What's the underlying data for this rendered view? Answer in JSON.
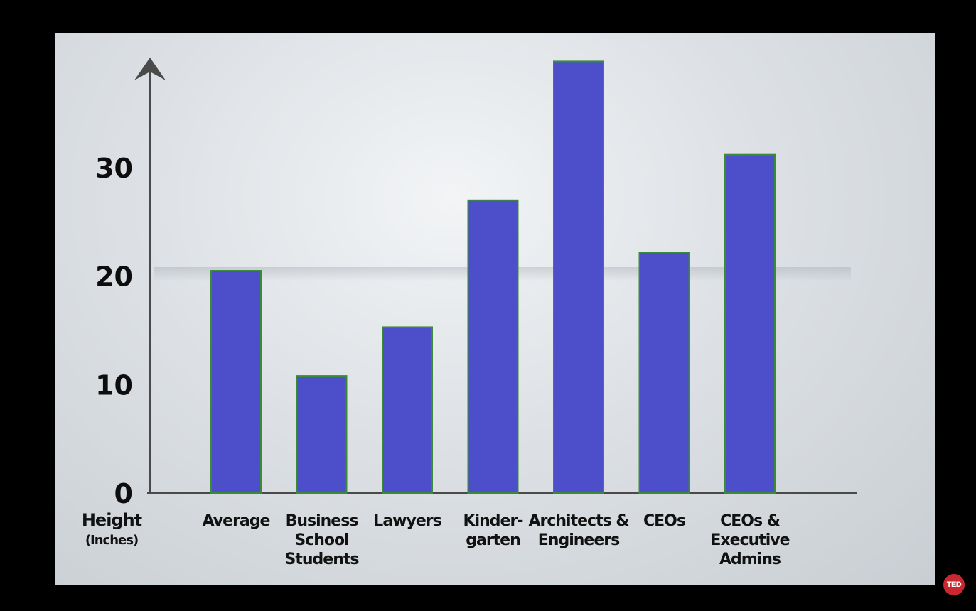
{
  "chart_data": {
    "type": "bar",
    "categories": [
      "Average",
      "Business School Students",
      "Lawyers",
      "Kinder- garten",
      "Architects & Engineers",
      "CEOs",
      "CEOs & Executive Admins"
    ],
    "category_lines": [
      [
        "Average"
      ],
      [
        "Business",
        "School",
        "Students"
      ],
      [
        "Lawyers"
      ],
      [
        "Kinder-",
        "garten"
      ],
      [
        "Architects &",
        "Engineers"
      ],
      [
        "CEOs"
      ],
      [
        "CEOs &",
        "Executive",
        "Admins"
      ]
    ],
    "values": [
      20.5,
      10.8,
      15.3,
      27.0,
      39.8,
      22.2,
      31.2
    ],
    "ylabel": "Height",
    "ylabel_unit": "(Inches)",
    "yticks": [
      0,
      10,
      20,
      30
    ],
    "ylim": [
      0,
      40
    ],
    "grid": false,
    "bar_color": "#4c4fc9",
    "bar_edge_color": "#3a8a3a",
    "axis_color": "#4a4a4a"
  },
  "badge": {
    "label": "TED",
    "color": "#c8282e"
  }
}
